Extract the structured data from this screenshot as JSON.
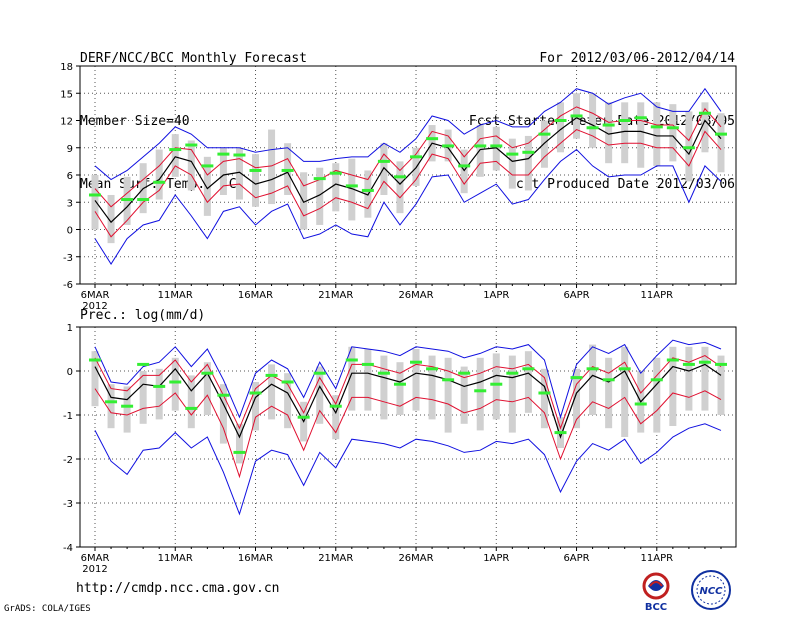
{
  "header": {
    "title": "DERF/NCC/BCC Monthly Forecast",
    "member_size": "Member Size=40",
    "variable": "Mean Surf. Temp.: °C",
    "period": "For 2012/03/06-2012/04/14",
    "started": "Fcst Started Refer Date 2012/03/05",
    "produced": "Fcst Produced Date 2012/03/06"
  },
  "prec_label": "Prec.: log(mm/d)",
  "url": "http://cmdp.ncc.cma.gov.cn",
  "credit": "GrADS: COLA/IGES",
  "logos": {
    "bcc": "BCC",
    "ncc": "NCC"
  },
  "colors": {
    "grey_bar": "#d0d0d0",
    "mean": "#000000",
    "spread": "#e01030",
    "envelope": "#1010e0",
    "observed": "#33ee33"
  },
  "chart_data": [
    {
      "type": "line",
      "title": "Mean Surf. Temp.: °C",
      "x_ticks": [
        "6MAR",
        "11MAR",
        "16MAR",
        "21MAR",
        "26MAR",
        "1APR",
        "6APR",
        "11APR"
      ],
      "x_year": "2012",
      "ylim": [
        -6,
        18
      ],
      "y_ticks": [
        "-6",
        "-3",
        "0",
        "3",
        "6",
        "9",
        "12",
        "15",
        "18"
      ],
      "day_count": 40,
      "series": [
        {
          "name": "ensemble-mean",
          "values": [
            3.2,
            0.8,
            2.5,
            4.5,
            5.5,
            8.0,
            7.5,
            4.5,
            6.0,
            6.3,
            5.0,
            5.5,
            6.3,
            3.0,
            3.8,
            5.0,
            4.5,
            3.8,
            6.8,
            5.0,
            6.8,
            9.5,
            9.0,
            6.5,
            8.8,
            9.0,
            7.5,
            7.8,
            9.5,
            11.0,
            12.3,
            11.5,
            10.5,
            10.8,
            10.8,
            10.3,
            10.3,
            8.3,
            12.0,
            10.0
          ]
        },
        {
          "name": "spread-upper",
          "values": [
            4.5,
            2.5,
            4.0,
            5.5,
            7.0,
            9.0,
            8.8,
            6.0,
            7.5,
            7.8,
            6.8,
            7.0,
            7.8,
            4.8,
            5.5,
            6.5,
            6.0,
            5.5,
            8.3,
            6.5,
            8.3,
            10.8,
            10.3,
            8.0,
            10.0,
            10.3,
            9.0,
            9.5,
            11.0,
            12.5,
            13.5,
            12.8,
            11.8,
            12.0,
            12.0,
            11.5,
            11.5,
            9.8,
            13.3,
            11.3
          ]
        },
        {
          "name": "spread-lower",
          "values": [
            2.0,
            -0.8,
            1.0,
            3.0,
            4.3,
            7.0,
            6.0,
            3.0,
            4.8,
            5.0,
            3.5,
            4.0,
            4.8,
            1.5,
            2.3,
            3.5,
            3.0,
            2.3,
            5.3,
            3.5,
            5.5,
            8.3,
            7.8,
            5.0,
            7.3,
            7.5,
            6.0,
            6.0,
            8.0,
            9.5,
            11.0,
            10.3,
            9.3,
            9.5,
            9.5,
            9.0,
            9.0,
            7.0,
            10.8,
            8.8
          ]
        },
        {
          "name": "envelope-max",
          "values": [
            7.0,
            5.5,
            6.5,
            8.0,
            9.5,
            11.3,
            10.5,
            9.0,
            9.0,
            9.0,
            8.5,
            8.8,
            9.0,
            7.5,
            7.5,
            7.8,
            8.0,
            8.0,
            9.5,
            8.5,
            10.0,
            12.5,
            12.0,
            10.5,
            11.5,
            12.0,
            11.3,
            11.3,
            13.0,
            14.0,
            15.5,
            15.0,
            13.8,
            14.5,
            15.0,
            13.5,
            13.0,
            13.0,
            15.5,
            13.0
          ]
        },
        {
          "name": "envelope-min",
          "values": [
            -1.0,
            -3.8,
            -1.0,
            0.5,
            1.0,
            3.8,
            1.5,
            -1.0,
            2.0,
            2.5,
            0.5,
            2.0,
            2.8,
            -1.0,
            -0.5,
            0.5,
            -0.5,
            -0.8,
            3.0,
            0.5,
            2.8,
            5.8,
            6.0,
            3.0,
            4.0,
            5.0,
            2.8,
            3.3,
            5.5,
            7.5,
            8.8,
            7.0,
            5.8,
            6.0,
            6.0,
            7.0,
            7.0,
            3.0,
            7.0,
            5.3
          ]
        },
        {
          "name": "observed",
          "values": [
            3.8,
            null,
            3.3,
            3.3,
            5.2,
            8.8,
            9.3,
            7.0,
            8.3,
            8.2,
            6.5,
            null,
            6.5,
            null,
            5.6,
            6.2,
            4.8,
            4.3,
            7.5,
            5.8,
            8.0,
            10.0,
            9.2,
            7.0,
            9.2,
            9.2,
            8.3,
            8.5,
            10.5,
            12.0,
            12.5,
            11.2,
            11.5,
            12.0,
            12.3,
            11.3,
            11.2,
            9.0,
            12.8,
            10.5
          ]
        },
        {
          "name": "box-top",
          "values": [
            6.0,
            3.8,
            5.8,
            7.3,
            8.8,
            10.5,
            9.8,
            8.0,
            9.0,
            9.0,
            8.3,
            11.0,
            9.5,
            6.3,
            6.8,
            7.3,
            7.8,
            6.5,
            9.5,
            7.5,
            9.0,
            11.5,
            11.0,
            8.8,
            11.5,
            11.3,
            10.0,
            10.3,
            12.0,
            14.0,
            15.0,
            15.0,
            14.0,
            14.0,
            14.0,
            14.0,
            13.8,
            13.0,
            14.0,
            12.8
          ]
        },
        {
          "name": "box-bottom",
          "values": [
            0.0,
            -1.5,
            0.5,
            1.8,
            3.3,
            5.8,
            4.3,
            1.5,
            3.8,
            3.3,
            2.5,
            2.8,
            3.8,
            0.0,
            0.5,
            2.0,
            1.0,
            1.3,
            3.8,
            1.8,
            4.8,
            7.5,
            7.5,
            4.0,
            5.8,
            6.5,
            4.5,
            4.3,
            6.8,
            8.5,
            10.0,
            9.0,
            7.3,
            7.3,
            6.8,
            7.0,
            7.5,
            5.3,
            8.5,
            6.3
          ]
        }
      ]
    },
    {
      "type": "line",
      "title": "Prec.: log(mm/d)",
      "x_ticks": [
        "6MAR",
        "11MAR",
        "16MAR",
        "21MAR",
        "26MAR",
        "1APR",
        "6APR",
        "11APR"
      ],
      "x_year": "2012",
      "ylim": [
        -4,
        1
      ],
      "y_ticks": [
        "-4",
        "-3",
        "-2",
        "-1",
        "0",
        "1"
      ],
      "day_count": 40,
      "series": [
        {
          "name": "ensemble-mean",
          "values": [
            0.1,
            -0.6,
            -0.65,
            -0.3,
            -0.35,
            0.05,
            -0.45,
            -0.05,
            -0.75,
            -1.5,
            -0.6,
            -0.3,
            -0.5,
            -1.15,
            -0.35,
            -0.95,
            -0.05,
            -0.05,
            -0.15,
            -0.25,
            -0.05,
            -0.1,
            -0.2,
            -0.35,
            -0.25,
            -0.1,
            -0.15,
            -0.05,
            -0.35,
            -1.5,
            -0.5,
            -0.1,
            -0.25,
            0.0,
            -0.7,
            -0.3,
            0.1,
            0.0,
            0.15,
            -0.1
          ]
        },
        {
          "name": "spread-upper",
          "values": [
            0.3,
            -0.4,
            -0.45,
            -0.1,
            -0.1,
            0.25,
            -0.25,
            0.15,
            -0.55,
            -1.3,
            -0.4,
            -0.1,
            -0.3,
            -0.95,
            -0.15,
            -0.75,
            0.15,
            0.15,
            0.05,
            -0.05,
            0.15,
            0.1,
            0.0,
            -0.15,
            -0.05,
            0.1,
            0.05,
            0.15,
            -0.15,
            -1.3,
            -0.3,
            0.1,
            -0.05,
            0.2,
            -0.5,
            -0.1,
            0.3,
            0.2,
            0.35,
            0.1
          ]
        },
        {
          "name": "spread-lower",
          "values": [
            -0.4,
            -0.95,
            -1.0,
            -0.85,
            -0.8,
            -0.5,
            -1.0,
            -0.55,
            -1.3,
            -2.4,
            -1.05,
            -0.8,
            -1.0,
            -1.8,
            -0.9,
            -1.4,
            -0.6,
            -0.6,
            -0.7,
            -0.8,
            -0.6,
            -0.65,
            -0.75,
            -0.95,
            -0.85,
            -0.65,
            -0.7,
            -0.6,
            -0.95,
            -2.0,
            -1.1,
            -0.7,
            -0.85,
            -0.6,
            -1.2,
            -0.9,
            -0.5,
            -0.6,
            -0.45,
            -0.65
          ]
        },
        {
          "name": "envelope-max",
          "values": [
            0.55,
            -0.25,
            -0.3,
            0.1,
            0.2,
            0.55,
            0.1,
            0.5,
            -0.2,
            -1.05,
            -0.05,
            0.25,
            0.05,
            -0.6,
            0.2,
            -0.4,
            0.55,
            0.5,
            0.45,
            0.35,
            0.55,
            0.5,
            0.45,
            0.3,
            0.4,
            0.55,
            0.5,
            0.6,
            0.25,
            -1.05,
            0.15,
            0.55,
            0.4,
            0.6,
            -0.05,
            0.35,
            0.7,
            0.6,
            0.65,
            0.5
          ]
        },
        {
          "name": "envelope-min",
          "values": [
            -1.35,
            -2.05,
            -2.35,
            -1.8,
            -1.75,
            -1.4,
            -1.75,
            -1.5,
            -2.3,
            -3.25,
            -2.05,
            -1.8,
            -1.9,
            -2.6,
            -1.85,
            -2.2,
            -1.55,
            -1.6,
            -1.65,
            -1.75,
            -1.55,
            -1.6,
            -1.7,
            -1.85,
            -1.8,
            -1.6,
            -1.65,
            -1.55,
            -1.9,
            -2.75,
            -2.05,
            -1.65,
            -1.8,
            -1.55,
            -2.1,
            -1.85,
            -1.5,
            -1.3,
            -1.2,
            -1.35
          ]
        },
        {
          "name": "observed",
          "values": [
            0.25,
            -0.7,
            -0.8,
            0.15,
            -0.35,
            -0.25,
            -0.85,
            -0.05,
            -0.55,
            -1.85,
            -0.5,
            -0.1,
            -0.25,
            -1.05,
            -0.05,
            -0.8,
            0.25,
            0.15,
            -0.05,
            -0.3,
            0.2,
            0.05,
            -0.2,
            -0.05,
            -0.45,
            -0.3,
            -0.05,
            0.05,
            -0.5,
            -1.4,
            -0.15,
            0.05,
            -0.2,
            0.05,
            -0.75,
            -0.2,
            0.25,
            0.15,
            0.2,
            0.15
          ]
        },
        {
          "name": "box-top",
          "values": [
            0.45,
            -0.3,
            -0.35,
            0.0,
            0.05,
            0.3,
            -0.1,
            0.2,
            -0.3,
            -1.2,
            -0.25,
            0.15,
            -0.05,
            -0.7,
            0.1,
            -0.55,
            0.55,
            0.5,
            0.35,
            0.2,
            0.5,
            0.35,
            0.3,
            0.1,
            0.3,
            0.4,
            0.35,
            0.45,
            0.05,
            -1.05,
            0.05,
            0.6,
            0.3,
            0.55,
            0.0,
            0.3,
            0.55,
            0.55,
            0.55,
            0.35
          ]
        },
        {
          "name": "box-bottom",
          "values": [
            -0.8,
            -1.3,
            -1.4,
            -1.2,
            -1.1,
            -0.9,
            -1.3,
            -1.0,
            -1.65,
            -2.1,
            -1.35,
            -1.1,
            -1.3,
            -1.6,
            -1.2,
            -1.55,
            -0.9,
            -0.9,
            -1.1,
            -1.0,
            -0.9,
            -1.1,
            -1.4,
            -1.2,
            -1.35,
            -1.1,
            -1.4,
            -0.95,
            -1.3,
            -1.75,
            -1.3,
            -1.0,
            -1.3,
            -1.5,
            -1.4,
            -1.4,
            -1.25,
            -0.9,
            -0.9,
            -1.0
          ]
        }
      ]
    }
  ]
}
